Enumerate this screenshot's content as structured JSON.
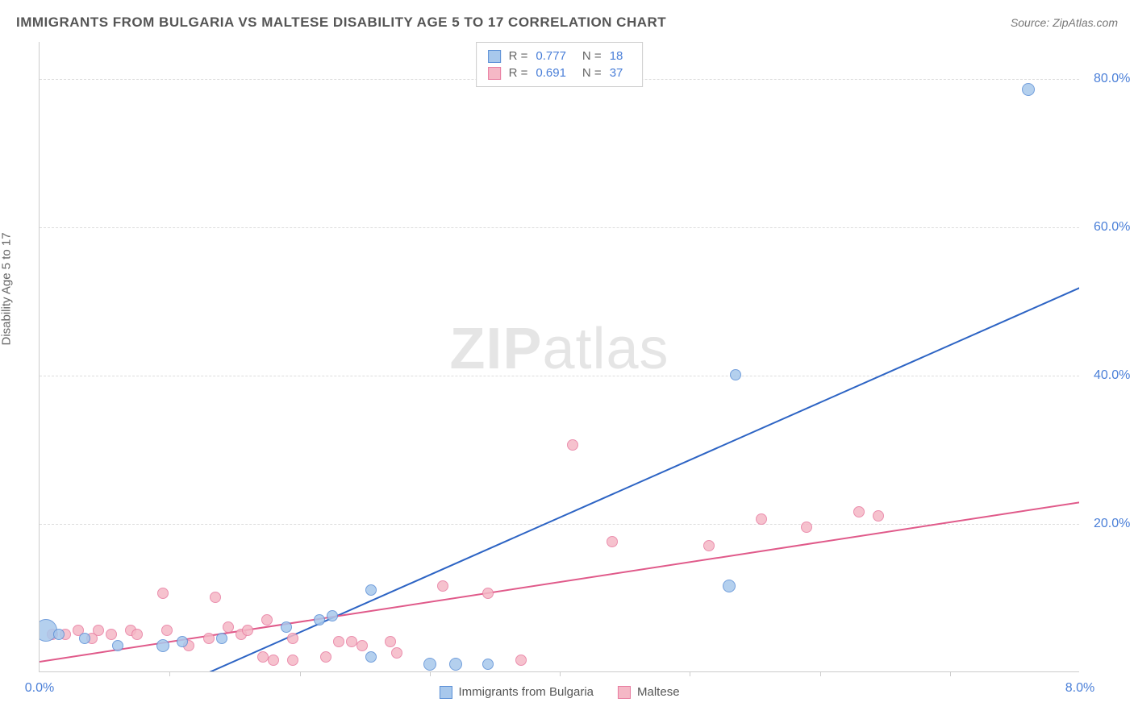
{
  "title": "IMMIGRANTS FROM BULGARIA VS MALTESE DISABILITY AGE 5 TO 17 CORRELATION CHART",
  "source": "Source: ZipAtlas.com",
  "ylabel": "Disability Age 5 to 17",
  "watermark_a": "ZIP",
  "watermark_b": "atlas",
  "chart": {
    "type": "scatter",
    "xlim": [
      0.0,
      8.0
    ],
    "ylim": [
      0.0,
      85.0
    ],
    "xtick_labels": {
      "0": "0.0%",
      "8": "8.0%"
    },
    "ytick_labels": {
      "20": "20.0%",
      "40": "40.0%",
      "60": "60.0%",
      "80": "80.0%"
    },
    "xtick_minor": [
      1,
      2,
      3,
      4,
      5,
      6,
      7
    ],
    "grid_color": "#dddddd",
    "background_color": "#ffffff",
    "series": [
      {
        "name": "Immigrants from Bulgaria",
        "color_fill": "#a8c8ec",
        "color_stroke": "#5b8fd6",
        "line_color": "#2d64c4",
        "R": "0.777",
        "N": "18",
        "marker_radius": 7,
        "reg_from": [
          0.9,
          -3.0
        ],
        "reg_to": [
          8.0,
          52.0
        ],
        "points": [
          [
            0.05,
            5.5,
            14
          ],
          [
            0.15,
            5.0,
            7
          ],
          [
            0.35,
            4.5,
            7
          ],
          [
            0.6,
            3.5,
            7
          ],
          [
            0.95,
            3.5,
            8
          ],
          [
            1.1,
            4.0,
            7
          ],
          [
            1.4,
            4.5,
            7
          ],
          [
            1.9,
            6.0,
            7
          ],
          [
            2.15,
            7.0,
            7
          ],
          [
            2.25,
            7.5,
            7
          ],
          [
            2.55,
            11.0,
            7
          ],
          [
            2.55,
            2.0,
            7
          ],
          [
            3.0,
            1.0,
            8
          ],
          [
            3.2,
            1.0,
            8
          ],
          [
            3.45,
            1.0,
            7
          ],
          [
            5.3,
            11.5,
            8
          ],
          [
            5.35,
            40.0,
            7
          ],
          [
            7.6,
            78.5,
            8
          ]
        ]
      },
      {
        "name": "Maltese",
        "color_fill": "#f5b8c6",
        "color_stroke": "#e87ca0",
        "line_color": "#e05a8a",
        "R": "0.691",
        "N": "37",
        "marker_radius": 7,
        "reg_from": [
          0.0,
          1.5
        ],
        "reg_to": [
          8.0,
          23.0
        ],
        "points": [
          [
            0.1,
            5.0,
            7
          ],
          [
            0.2,
            5.0,
            7
          ],
          [
            0.3,
            5.5,
            7
          ],
          [
            0.4,
            4.5,
            7
          ],
          [
            0.45,
            5.5,
            7
          ],
          [
            0.55,
            5.0,
            7
          ],
          [
            0.7,
            5.5,
            7
          ],
          [
            0.75,
            5.0,
            7
          ],
          [
            0.95,
            10.5,
            7
          ],
          [
            0.98,
            5.5,
            7
          ],
          [
            1.15,
            3.5,
            7
          ],
          [
            1.3,
            4.5,
            7
          ],
          [
            1.35,
            10.0,
            7
          ],
          [
            1.45,
            6.0,
            7
          ],
          [
            1.55,
            5.0,
            7
          ],
          [
            1.6,
            5.5,
            7
          ],
          [
            1.72,
            2.0,
            7
          ],
          [
            1.75,
            7.0,
            7
          ],
          [
            1.8,
            1.5,
            7
          ],
          [
            1.95,
            1.5,
            7
          ],
          [
            1.95,
            4.5,
            7
          ],
          [
            2.2,
            2.0,
            7
          ],
          [
            2.3,
            4.0,
            7
          ],
          [
            2.4,
            4.0,
            7
          ],
          [
            2.48,
            3.5,
            7
          ],
          [
            2.7,
            4.0,
            7
          ],
          [
            2.75,
            2.5,
            7
          ],
          [
            3.1,
            11.5,
            7
          ],
          [
            3.45,
            10.5,
            7
          ],
          [
            3.7,
            1.5,
            7
          ],
          [
            4.1,
            30.5,
            7
          ],
          [
            4.4,
            17.5,
            7
          ],
          [
            5.15,
            17.0,
            7
          ],
          [
            5.55,
            20.5,
            7
          ],
          [
            5.9,
            19.5,
            7
          ],
          [
            6.3,
            21.5,
            7
          ],
          [
            6.45,
            21.0,
            7
          ]
        ]
      }
    ]
  },
  "legend_bottom": [
    {
      "label": "Immigrants from Bulgaria",
      "fill": "#a8c8ec",
      "stroke": "#5b8fd6"
    },
    {
      "label": "Maltese",
      "fill": "#f5b8c6",
      "stroke": "#e87ca0"
    }
  ]
}
